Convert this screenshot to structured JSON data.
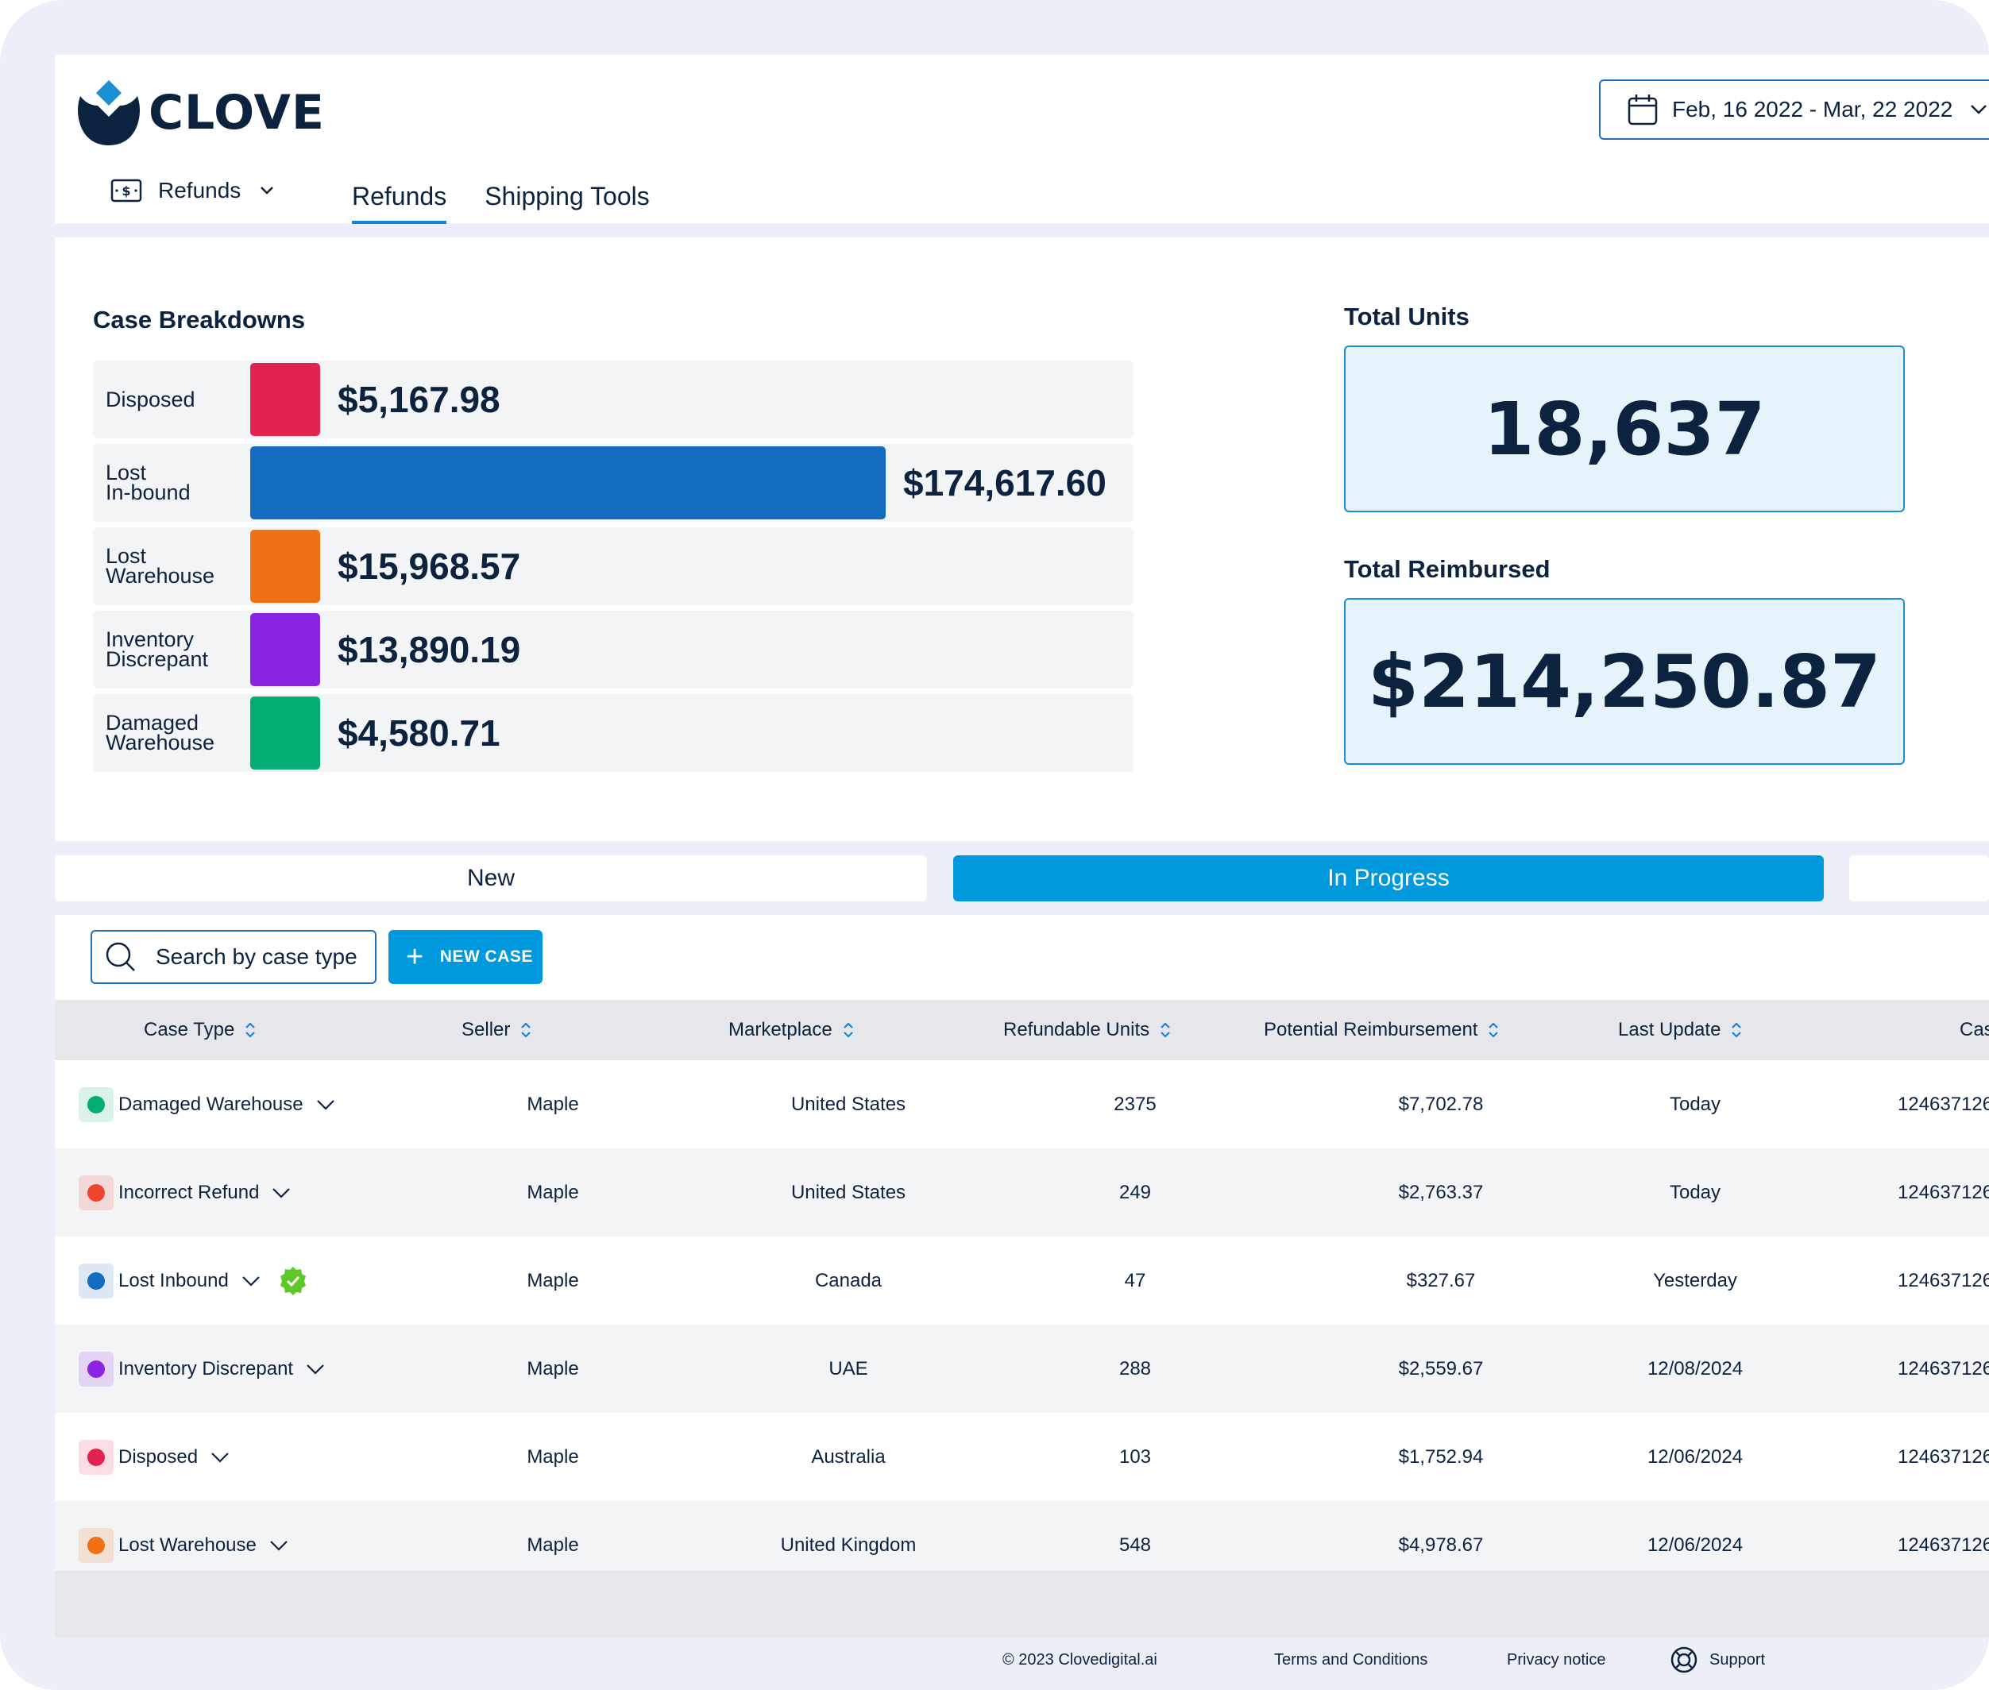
{
  "app": {
    "logo_text": "CLOVE"
  },
  "header": {
    "date_range": "Feb, 16 2022 - Mar, 22 2022",
    "section_select": "Refunds",
    "tabs": [
      {
        "label": "Refunds",
        "active": true
      },
      {
        "label": "Shipping Tools",
        "active": false
      }
    ]
  },
  "case_breakdowns": {
    "title": "Case Breakdowns",
    "rows": [
      {
        "label": "Disposed",
        "value": "$5,167.98",
        "amount": 5167.98,
        "color": "#e3234f"
      },
      {
        "label": "Lost\nIn-bound",
        "value": "$174,617.60",
        "amount": 174617.6,
        "color": "#136cbf"
      },
      {
        "label": "Lost\nWarehouse",
        "value": "$15,968.57",
        "amount": 15968.57,
        "color": "#f07115"
      },
      {
        "label": "Inventory\nDiscrepant",
        "value": "$13,890.19",
        "amount": 13890.19,
        "color": "#8b24e2"
      },
      {
        "label": "Damaged\nWarehouse",
        "value": "$4,580.71",
        "amount": 4580.71,
        "color": "#04ae70"
      }
    ]
  },
  "metrics": {
    "total_units": {
      "label": "Total Units",
      "value": "18,637"
    },
    "total_reimbursed": {
      "label": "Total Reimbursed",
      "value": "$214,250.87"
    }
  },
  "status_tabs": [
    {
      "label": "New",
      "active": false
    },
    {
      "label": "In Progress",
      "active": true
    },
    {
      "label": "",
      "active": false
    }
  ],
  "toolbar": {
    "search_placeholder": "Search by case type",
    "new_case_label": "NEW CASE"
  },
  "table": {
    "columns": [
      "Case Type",
      "Seller",
      "Marketplace",
      "Refundable Units",
      "Potential Reimbursement",
      "Last Update",
      "Cas"
    ],
    "rows": [
      {
        "case_type": "Damaged Warehouse",
        "color": "#04ae70",
        "seller": "Maple",
        "marketplace": "United States",
        "units": "2375",
        "reimbursement": "$7,702.78",
        "last_update": "Today",
        "case_id": "124637126",
        "verified": false
      },
      {
        "case_type": "Incorrect Refund",
        "color": "#f0432e",
        "seller": "Maple",
        "marketplace": "United States",
        "units": "249",
        "reimbursement": "$2,763.37",
        "last_update": "Today",
        "case_id": "124637126",
        "verified": false
      },
      {
        "case_type": "Lost Inbound",
        "color": "#136cbf",
        "seller": "Maple",
        "marketplace": "Canada",
        "units": "47",
        "reimbursement": "$327.67",
        "last_update": "Yesterday",
        "case_id": "124637126",
        "verified": true
      },
      {
        "case_type": "Inventory Discrepant",
        "color": "#8b24e2",
        "seller": "Maple",
        "marketplace": "UAE",
        "units": "288",
        "reimbursement": "$2,559.67",
        "last_update": "12/08/2024",
        "case_id": "124637126",
        "verified": false
      },
      {
        "case_type": "Disposed",
        "color": "#e3234f",
        "seller": "Maple",
        "marketplace": "Australia",
        "units": "103",
        "reimbursement": "$1,752.94",
        "last_update": "12/06/2024",
        "case_id": "124637126",
        "verified": false
      },
      {
        "case_type": "Lost Warehouse",
        "color": "#f07115",
        "seller": "Maple",
        "marketplace": "United Kingdom",
        "units": "548",
        "reimbursement": "$4,978.67",
        "last_update": "12/06/2024",
        "case_id": "124637126",
        "verified": false
      }
    ]
  },
  "footer": {
    "copyright": "© 2023 Clovedigital.ai",
    "terms": "Terms and Conditions",
    "privacy": "Privacy notice",
    "support": "Support"
  }
}
